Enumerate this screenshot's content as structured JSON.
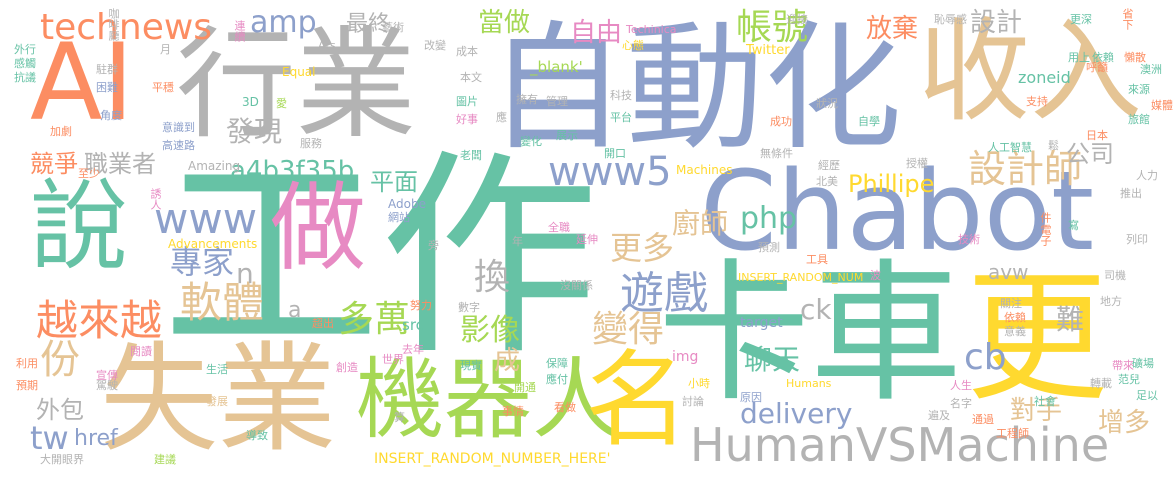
{
  "palette": {
    "teal": "#66c2a5",
    "orange": "#fc8d62",
    "blue": "#8da0cb",
    "pink": "#e78ac3",
    "green": "#a6d854",
    "yellow": "#ffd92f",
    "tan": "#e5c494",
    "gray": "#b3b3b3"
  },
  "words": [
    {
      "t": "工作",
      "c": "teal"
    },
    {
      "t": "自動化",
      "c": "blue"
    },
    {
      "t": "行業",
      "c": "gray"
    },
    {
      "t": "收入",
      "c": "tan"
    },
    {
      "t": "AI",
      "c": "orange"
    },
    {
      "t": "卡車",
      "c": "teal"
    },
    {
      "t": "更",
      "c": "yellow"
    },
    {
      "t": "Chabot",
      "c": "blue"
    },
    {
      "t": "失業",
      "c": "tan"
    },
    {
      "t": "說",
      "c": "teal"
    },
    {
      "t": "做",
      "c": "pink"
    },
    {
      "t": "機器人",
      "c": "green"
    },
    {
      "t": "名",
      "c": "yellow"
    },
    {
      "t": "HumanVSMachine",
      "c": "gray"
    },
    {
      "t": "technews",
      "c": "orange"
    },
    {
      "t": "amp",
      "c": "blue"
    },
    {
      "t": "最終",
      "c": "gray"
    },
    {
      "t": "當做",
      "c": "green"
    },
    {
      "t": "自由",
      "c": "pink"
    },
    {
      "t": "帳號",
      "c": "green"
    },
    {
      "t": "放棄",
      "c": "orange"
    },
    {
      "t": "設計",
      "c": "gray"
    },
    {
      "t": "設計師",
      "c": "tan"
    },
    {
      "t": "發現",
      "c": "gray"
    },
    {
      "t": "a4b3f35b",
      "c": "teal"
    },
    {
      "t": "www5",
      "c": "blue"
    },
    {
      "t": "www",
      "c": "blue"
    },
    {
      "t": "php",
      "c": "teal"
    },
    {
      "t": "競爭",
      "c": "orange"
    },
    {
      "t": "職業者",
      "c": "gray"
    },
    {
      "t": "平面",
      "c": "teal"
    },
    {
      "t": "Phillipe",
      "c": "yellow"
    },
    {
      "t": "公司",
      "c": "gray"
    },
    {
      "t": "專家",
      "c": "blue"
    },
    {
      "t": "廚師",
      "c": "tan"
    },
    {
      "t": "更多",
      "c": "tan"
    },
    {
      "t": "軟體",
      "c": "tan"
    },
    {
      "t": "n",
      "c": "gray"
    },
    {
      "t": "換",
      "c": "gray"
    },
    {
      "t": "遊戲",
      "c": "blue"
    },
    {
      "t": "越來越",
      "c": "orange"
    },
    {
      "t": "多萬",
      "c": "green"
    },
    {
      "t": "a",
      "c": "gray"
    },
    {
      "t": "影像",
      "c": "green"
    },
    {
      "t": "變得",
      "c": "tan"
    },
    {
      "t": "ck",
      "c": "gray"
    },
    {
      "t": "cb",
      "c": "blue"
    },
    {
      "t": "份",
      "c": "tan"
    },
    {
      "t": "成",
      "c": "tan"
    },
    {
      "t": "聊天",
      "c": "teal"
    },
    {
      "t": "難",
      "c": "gray"
    },
    {
      "t": "外包",
      "c": "gray"
    },
    {
      "t": "tw",
      "c": "blue"
    },
    {
      "t": "href",
      "c": "blue"
    },
    {
      "t": "delivery",
      "c": "blue"
    },
    {
      "t": "對手",
      "c": "tan"
    },
    {
      "t": "增多",
      "c": "tan"
    },
    {
      "t": "avw",
      "c": "gray"
    },
    {
      "t": "zoneid",
      "c": "teal"
    },
    {
      "t": "_blank'",
      "c": "green"
    },
    {
      "t": "Twitter",
      "c": "yellow"
    },
    {
      "t": "Equal",
      "c": "yellow"
    },
    {
      "t": "INSERT_RANDOM_NUMBER_HERE'",
      "c": "yellow"
    },
    {
      "t": "INSERT_RANDOM_NUM",
      "c": "yellow"
    },
    {
      "t": "Advancements",
      "c": "yellow"
    },
    {
      "t": "Machines",
      "c": "yellow"
    },
    {
      "t": "Amazing",
      "c": "gray"
    },
    {
      "t": "Humans",
      "c": "yellow"
    },
    {
      "t": "Techinica",
      "c": "pink"
    },
    {
      "t": "Ars",
      "c": "gray"
    },
    {
      "t": "Adobe",
      "c": "blue"
    },
    {
      "t": "target",
      "c": "blue"
    },
    {
      "t": "src",
      "c": "teal"
    },
    {
      "t": "img",
      "c": "pink"
    },
    {
      "t": "3D",
      "c": "teal"
    },
    {
      "t": "咖啡廳",
      "c": "gray"
    },
    {
      "t": "連續",
      "c": "pink"
    },
    {
      "t": "藝術",
      "c": "gray"
    },
    {
      "t": "迎接",
      "c": "gray"
    },
    {
      "t": "恥辱感",
      "c": "gray"
    },
    {
      "t": "更深",
      "c": "teal"
    },
    {
      "t": "省下",
      "c": "orange"
    },
    {
      "t": "外行",
      "c": "teal"
    },
    {
      "t": "駐群",
      "c": "gray"
    },
    {
      "t": "感觸",
      "c": "teal"
    },
    {
      "t": "抗議",
      "c": "teal"
    },
    {
      "t": "困難",
      "c": "blue"
    },
    {
      "t": "平穩",
      "c": "orange"
    },
    {
      "t": "加劇",
      "c": "orange"
    },
    {
      "t": "角度",
      "c": "blue"
    },
    {
      "t": "意識到",
      "c": "blue"
    },
    {
      "t": "高速路",
      "c": "blue"
    },
    {
      "t": "至少",
      "c": "orange"
    },
    {
      "t": "誘人",
      "c": "pink"
    },
    {
      "t": "網站",
      "c": "blue"
    },
    {
      "t": "服務",
      "c": "gray"
    },
    {
      "t": "本文",
      "c": "gray"
    },
    {
      "t": "圖片",
      "c": "teal"
    },
    {
      "t": "好事",
      "c": "pink"
    },
    {
      "t": "擁有",
      "c": "gray"
    },
    {
      "t": "管理",
      "c": "gray"
    },
    {
      "t": "老闆",
      "c": "teal"
    },
    {
      "t": "變化",
      "c": "teal"
    },
    {
      "t": "展示",
      "c": "teal"
    },
    {
      "t": "科技",
      "c": "gray"
    },
    {
      "t": "平台",
      "c": "teal"
    },
    {
      "t": "開口",
      "c": "teal"
    },
    {
      "t": "狀況",
      "c": "gray"
    },
    {
      "t": "成功",
      "c": "orange"
    },
    {
      "t": "自學",
      "c": "teal"
    },
    {
      "t": "無條件",
      "c": "gray"
    },
    {
      "t": "人工智慧",
      "c": "teal"
    },
    {
      "t": "經歷",
      "c": "gray"
    },
    {
      "t": "授權",
      "c": "gray"
    },
    {
      "t": "北美",
      "c": "gray"
    },
    {
      "t": "技術",
      "c": "pink"
    },
    {
      "t": "預測",
      "c": "gray"
    },
    {
      "t": "工具",
      "c": "orange"
    },
    {
      "t": "延伸",
      "c": "pink"
    },
    {
      "t": "全職",
      "c": "pink"
    },
    {
      "t": "數字",
      "c": "gray"
    },
    {
      "t": "努力",
      "c": "orange"
    },
    {
      "t": "超出",
      "c": "orange"
    },
    {
      "t": "沒關係",
      "c": "gray"
    },
    {
      "t": "保障",
      "c": "teal"
    },
    {
      "t": "應付",
      "c": "teal"
    },
    {
      "t": "現實",
      "c": "teal"
    },
    {
      "t": "世界",
      "c": "pink"
    },
    {
      "t": "去年",
      "c": "pink"
    },
    {
      "t": "創造",
      "c": "pink"
    },
    {
      "t": "宣傳",
      "c": "pink"
    },
    {
      "t": "閱讀",
      "c": "pink"
    },
    {
      "t": "利用",
      "c": "orange"
    },
    {
      "t": "預期",
      "c": "orange"
    },
    {
      "t": "駕駛",
      "c": "gray"
    },
    {
      "t": "生活",
      "c": "teal"
    },
    {
      "t": "發展",
      "c": "tan"
    },
    {
      "t": "導致",
      "c": "teal"
    },
    {
      "t": "大開眼界",
      "c": "gray"
    },
    {
      "t": "建議",
      "c": "green"
    },
    {
      "t": "開通",
      "c": "green"
    },
    {
      "t": "事情",
      "c": "orange"
    },
    {
      "t": "看做",
      "c": "orange"
    },
    {
      "t": "小時",
      "c": "yellow"
    },
    {
      "t": "討論",
      "c": "gray"
    },
    {
      "t": "原因",
      "c": "blue"
    },
    {
      "t": "人生",
      "c": "pink"
    },
    {
      "t": "地區",
      "c": "teal"
    },
    {
      "t": "工程師",
      "c": "orange"
    },
    {
      "t": "遍及",
      "c": "gray"
    },
    {
      "t": "通過",
      "c": "orange"
    },
    {
      "t": "名字",
      "c": "gray"
    },
    {
      "t": "關注",
      "c": "gray"
    },
    {
      "t": "依賴",
      "c": "orange"
    },
    {
      "t": "意義",
      "c": "gray"
    },
    {
      "t": "社會",
      "c": "teal"
    },
    {
      "t": "轉載",
      "c": "gray"
    },
    {
      "t": "足以",
      "c": "teal"
    },
    {
      "t": "帶來",
      "c": "pink"
    },
    {
      "t": "范兒",
      "c": "teal"
    },
    {
      "t": "礦場",
      "c": "teal"
    },
    {
      "t": "地方",
      "c": "gray"
    },
    {
      "t": "司機",
      "c": "gray"
    },
    {
      "t": "列印",
      "c": "gray"
    },
    {
      "t": "推出",
      "c": "gray"
    },
    {
      "t": "人力",
      "c": "gray"
    },
    {
      "t": "寫",
      "c": "teal"
    },
    {
      "t": "件",
      "c": "orange"
    },
    {
      "t": "電子",
      "c": "orange"
    },
    {
      "t": "鬆",
      "c": "gray"
    },
    {
      "t": "日本",
      "c": "orange"
    },
    {
      "t": "波",
      "c": "pink"
    },
    {
      "t": "支持",
      "c": "orange"
    },
    {
      "t": "用上",
      "c": "teal"
    },
    {
      "t": "依賴",
      "c": "teal"
    },
    {
      "t": "呼籲",
      "c": "orange"
    },
    {
      "t": "懶散",
      "c": "orange"
    },
    {
      "t": "澳洲",
      "c": "teal"
    },
    {
      "t": "來源",
      "c": "teal"
    },
    {
      "t": "旅館",
      "c": "teal"
    },
    {
      "t": "媒體",
      "c": "orange"
    },
    {
      "t": "心態",
      "c": "yellow"
    },
    {
      "t": "成本",
      "c": "gray"
    },
    {
      "t": "愛",
      "c": "green"
    },
    {
      "t": "月",
      "c": "gray"
    },
    {
      "t": "年",
      "c": "gray"
    },
    {
      "t": "旁",
      "c": "gray"
    },
    {
      "t": "改變",
      "c": "gray"
    },
    {
      "t": "應",
      "c": "gray"
    },
    {
      "t": "算",
      "c": "gray"
    }
  ]
}
